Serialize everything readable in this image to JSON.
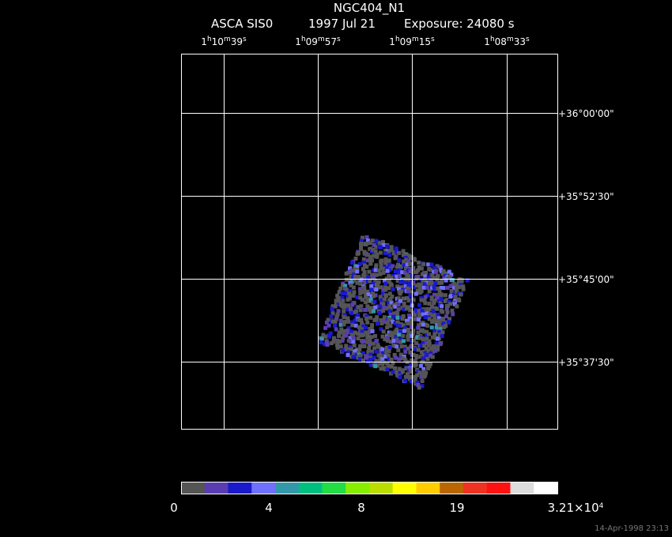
{
  "header": {
    "title": "NGC404_N1",
    "instrument": "ASCA SIS0",
    "date": "1997 Jul 21",
    "exposure": "Exposure: 24080 s"
  },
  "ra_labels": [
    [
      "1",
      "h",
      "10",
      "m",
      "39",
      "s"
    ],
    [
      "1",
      "h",
      "09",
      "m",
      "57",
      "s"
    ],
    [
      "1",
      "h",
      "09",
      "m",
      "15",
      "s"
    ],
    [
      "1",
      "h",
      "08",
      "m",
      "33",
      "s"
    ]
  ],
  "dec_labels": [
    "+36°00'00\"",
    "+35°52'30\"",
    "+35°45'00\"",
    "+35°37'30\""
  ],
  "colorbar": {
    "colors": [
      "#555555",
      "#5a3db0",
      "#1a1acc",
      "#7070ff",
      "#3399aa",
      "#00c080",
      "#22dd44",
      "#88ee00",
      "#bbdd00",
      "#ffff00",
      "#ffcc00",
      "#bb6600",
      "#ee3322",
      "#ff1111",
      "#dddddd",
      "#ffffff"
    ],
    "labels": [
      [
        "0"
      ],
      [
        "4"
      ],
      [
        "8"
      ],
      [
        "19"
      ],
      [
        "3.21×10",
        "4"
      ]
    ]
  },
  "footer": "14-Apr-1998 23:13"
}
